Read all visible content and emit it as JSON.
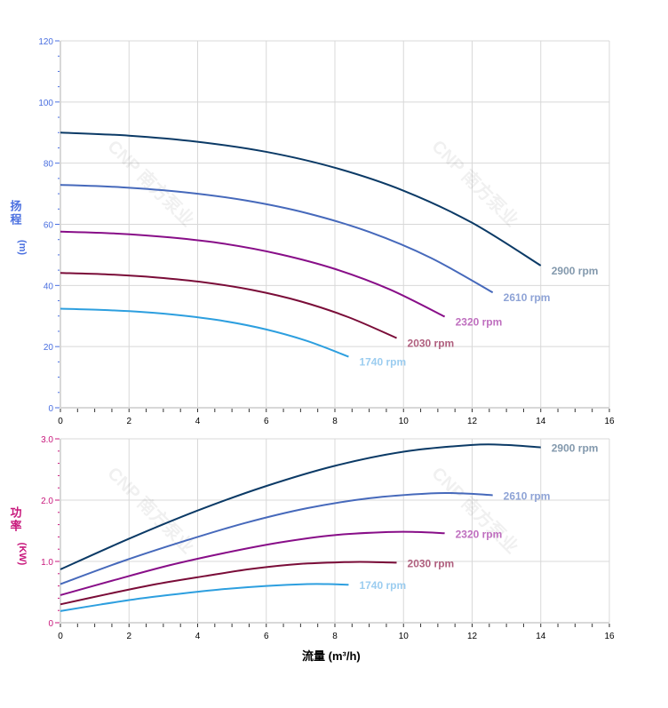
{
  "watermark": "CNP 南方泵业",
  "chart_data": [
    {
      "type": "line",
      "ylabel_chars": [
        "扬",
        "程",
        "(m)"
      ],
      "xlim": [
        0,
        16
      ],
      "ylim": [
        0,
        120
      ],
      "x_ticks": [
        "0",
        "2",
        "4",
        "6",
        "8",
        "10",
        "12",
        "14",
        "16"
      ],
      "y_ticks": [
        "0",
        "20",
        "40",
        "60",
        "80",
        "100",
        "120"
      ],
      "grid": true,
      "axis_color": "#4a6fe0",
      "series": [
        {
          "name": "2900 rpm",
          "color": "#0b3a66",
          "label_color": "#8399ad",
          "x": [
            0,
            2,
            4,
            6,
            8,
            10,
            12,
            14
          ],
          "y": [
            90,
            89,
            87,
            83.7,
            78.5,
            71,
            60.5,
            46.5
          ]
        },
        {
          "name": "2610 rpm",
          "color": "#4669bb",
          "label_color": "#8ea3d6",
          "x": [
            0,
            1.8,
            3.6,
            5.4,
            7.2,
            9,
            10.8,
            12.6
          ],
          "y": [
            72.9,
            72.1,
            70.5,
            67.8,
            63.6,
            57.5,
            49.0,
            37.7
          ]
        },
        {
          "name": "2320 rpm",
          "color": "#880e88",
          "label_color": "#bf6fbf",
          "x": [
            0,
            1.6,
            3.2,
            4.8,
            6.4,
            8,
            9.6,
            11.2
          ],
          "y": [
            57.6,
            57.0,
            55.7,
            53.6,
            50.2,
            45.4,
            38.7,
            29.8
          ]
        },
        {
          "name": "2030 rpm",
          "color": "#7a0c38",
          "label_color": "#b0607f",
          "x": [
            0,
            1.4,
            2.8,
            4.2,
            5.6,
            7,
            8.4,
            9.8
          ],
          "y": [
            44.1,
            43.6,
            42.6,
            41.0,
            38.5,
            34.8,
            29.6,
            22.8
          ]
        },
        {
          "name": "1740 rpm",
          "color": "#2d9fdf",
          "label_color": "#9ccdf0",
          "x": [
            0,
            1.2,
            2.4,
            3.6,
            4.8,
            6,
            7.2,
            8.4
          ],
          "y": [
            32.4,
            32.0,
            31.3,
            30.1,
            28.3,
            25.6,
            21.8,
            16.7
          ]
        }
      ]
    },
    {
      "type": "line",
      "ylabel_chars": [
        "功",
        "率",
        "(KW)"
      ],
      "xlabel": "流量 (m³/h)",
      "xlim": [
        0,
        16
      ],
      "ylim": [
        0,
        3.0
      ],
      "x_ticks": [
        "0",
        "2",
        "4",
        "6",
        "8",
        "10",
        "12",
        "14",
        "16"
      ],
      "y_ticks": [
        "0",
        "1.0",
        "2.0",
        "3.0"
      ],
      "grid": true,
      "axis_color": "#c8187c",
      "series": [
        {
          "name": "2900 rpm",
          "color": "#0b3a66",
          "label_color": "#8399ad",
          "x": [
            0,
            2,
            4,
            6,
            8,
            10,
            12,
            13,
            14
          ],
          "y": [
            0.87,
            1.37,
            1.83,
            2.23,
            2.56,
            2.79,
            2.9,
            2.9,
            2.86
          ]
        },
        {
          "name": "2610 rpm",
          "color": "#4669bb",
          "label_color": "#8ea3d6",
          "x": [
            0,
            1.8,
            3.6,
            5.4,
            7.2,
            9,
            10.8,
            11.7,
            12.6
          ],
          "y": [
            0.63,
            1.0,
            1.33,
            1.63,
            1.87,
            2.03,
            2.11,
            2.11,
            2.08
          ]
        },
        {
          "name": "2320 rpm",
          "color": "#880e88",
          "label_color": "#bf6fbf",
          "x": [
            0,
            1.6,
            3.2,
            4.8,
            6.4,
            8,
            9.6,
            10.4,
            11.2
          ],
          "y": [
            0.45,
            0.7,
            0.94,
            1.14,
            1.31,
            1.43,
            1.48,
            1.48,
            1.46
          ]
        },
        {
          "name": "2030 rpm",
          "color": "#7a0c38",
          "label_color": "#b0607f",
          "x": [
            0,
            1.4,
            2.8,
            4.2,
            5.6,
            7,
            8.4,
            9.1,
            9.8
          ],
          "y": [
            0.3,
            0.47,
            0.63,
            0.76,
            0.88,
            0.96,
            0.99,
            0.99,
            0.98
          ]
        },
        {
          "name": "1740 rpm",
          "color": "#2d9fdf",
          "label_color": "#9ccdf0",
          "x": [
            0,
            1.2,
            2.4,
            3.6,
            4.8,
            6,
            7.2,
            7.8,
            8.4
          ],
          "y": [
            0.19,
            0.3,
            0.4,
            0.48,
            0.55,
            0.6,
            0.63,
            0.63,
            0.62
          ]
        }
      ]
    }
  ]
}
